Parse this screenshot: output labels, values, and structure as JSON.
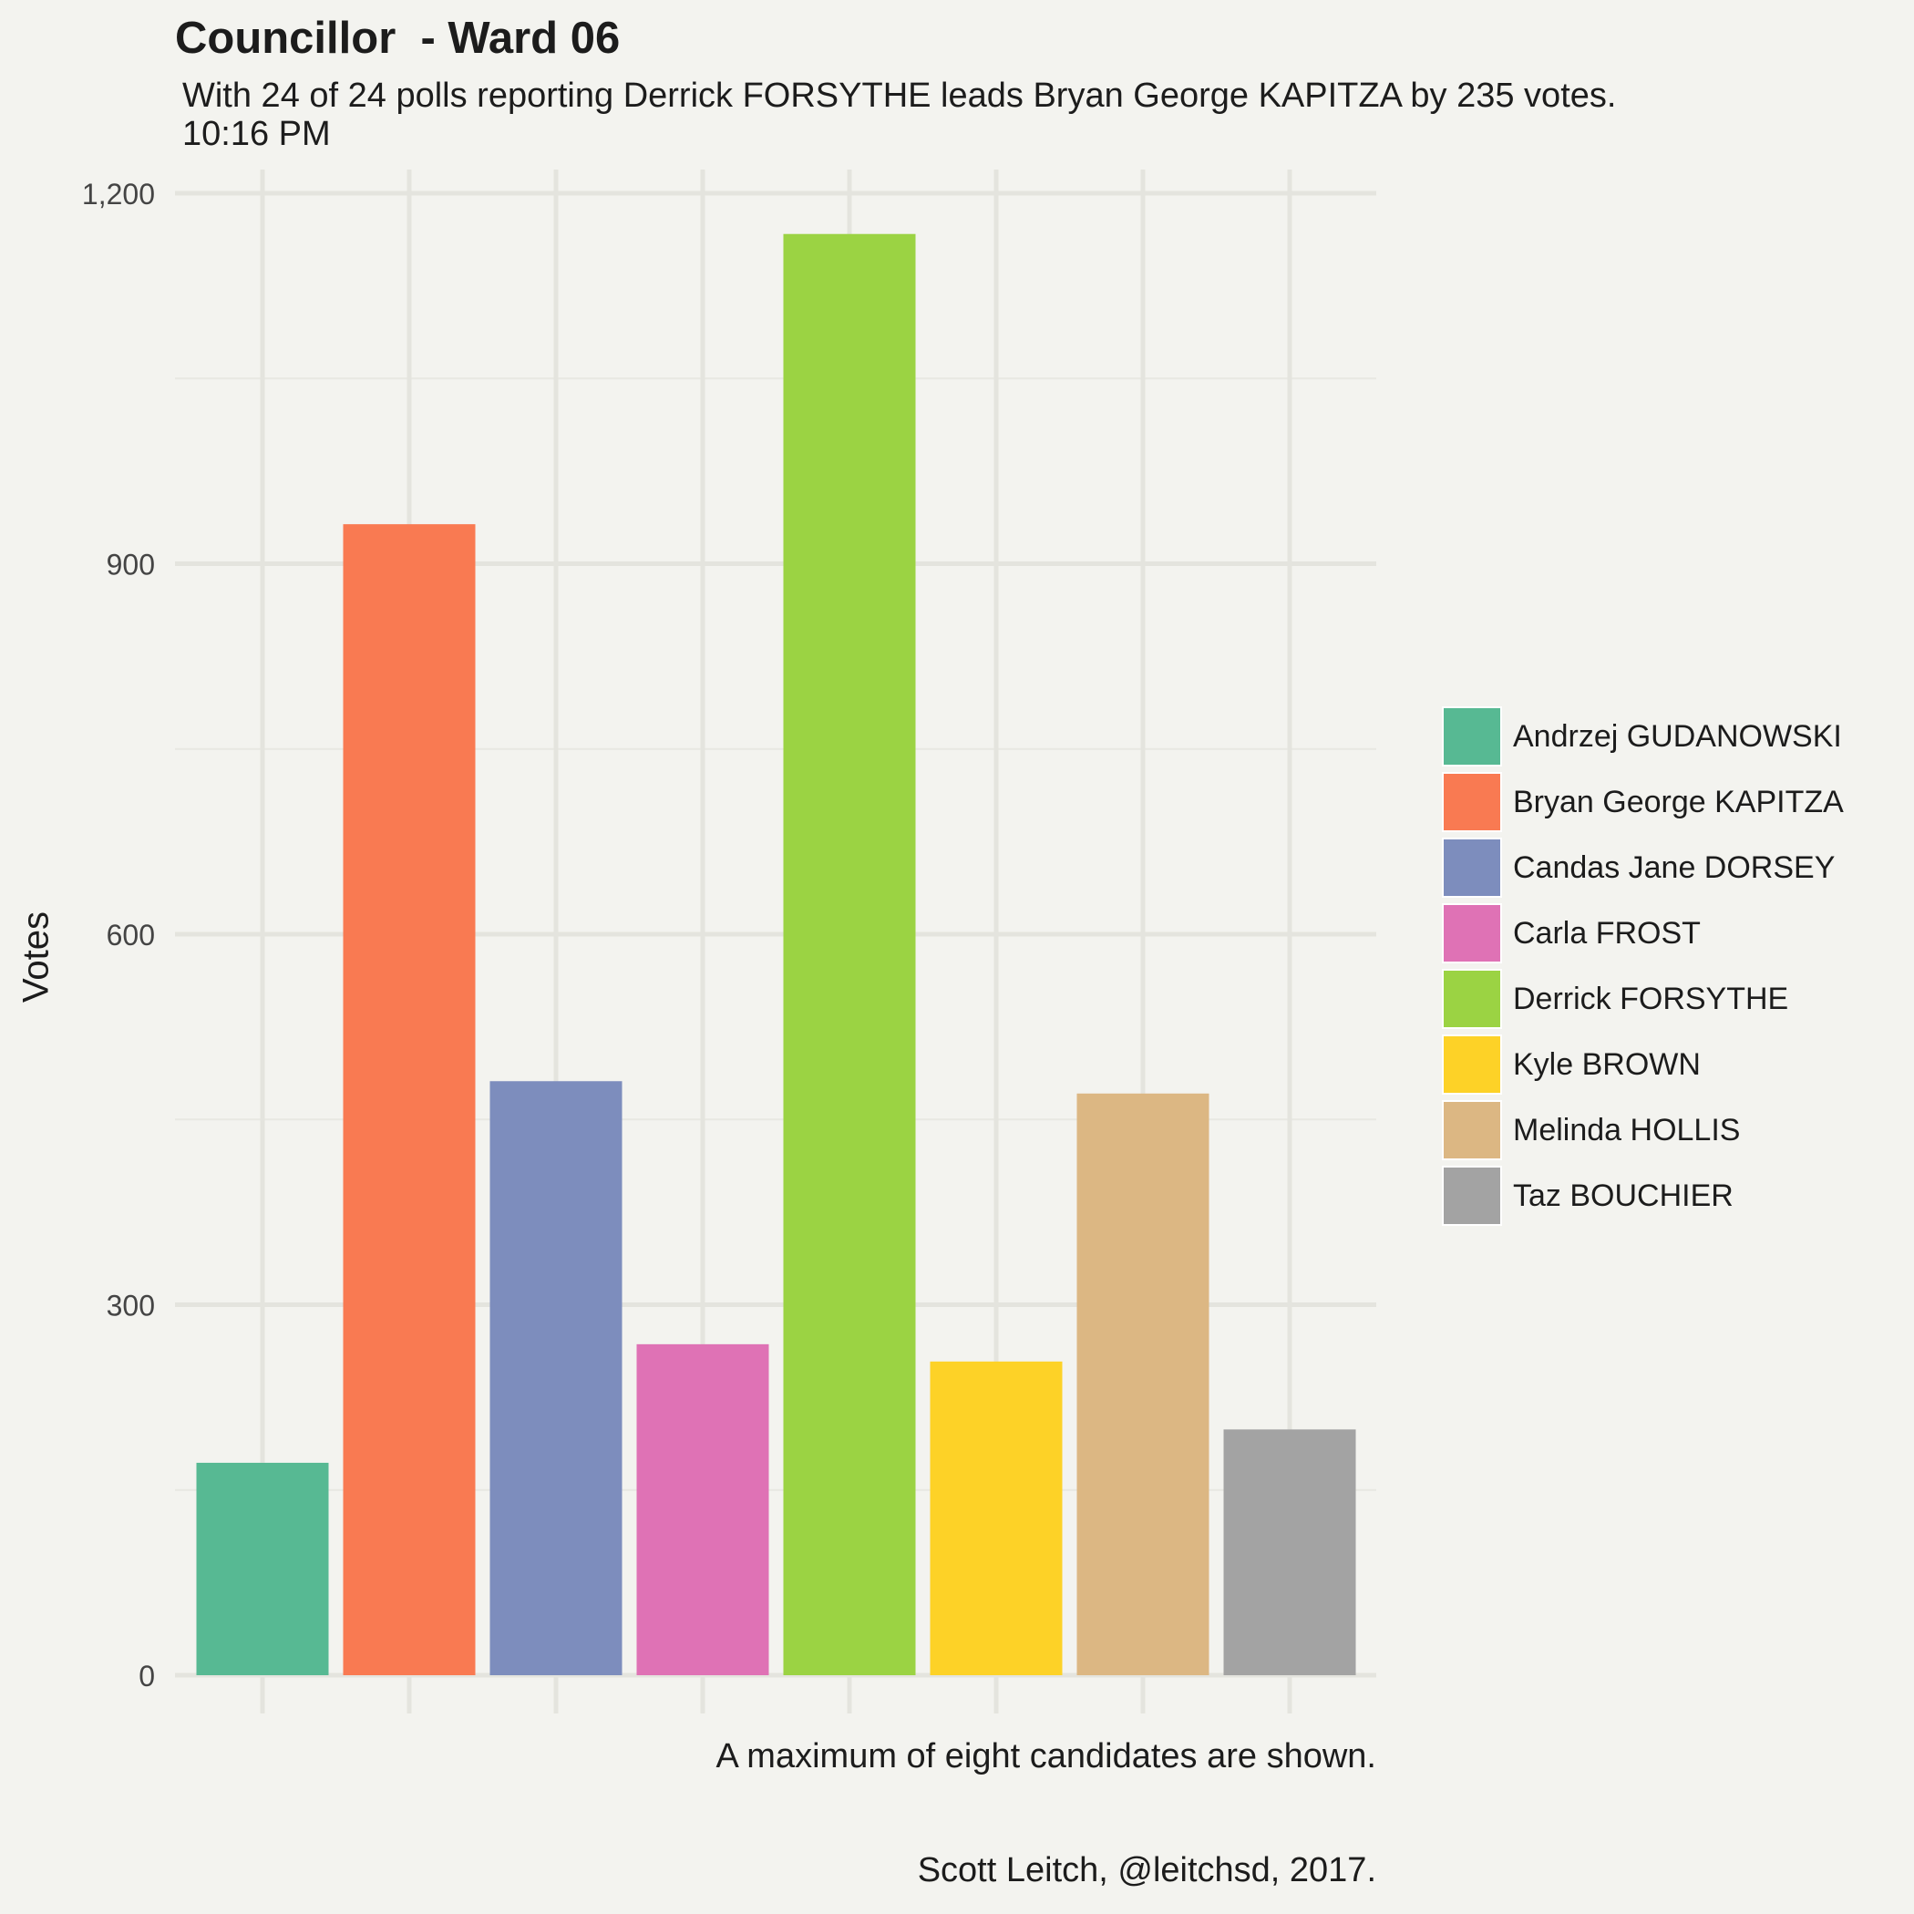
{
  "chart_data": {
    "type": "bar",
    "title": "Councillor  - Ward 06",
    "subtitle_line1": "With 24 of 24 polls reporting Derrick FORSYTHE leads Bryan George KAPITZA by 235 votes.",
    "subtitle_line2": "10:16 PM",
    "xlabel": "",
    "ylabel": "Votes",
    "ylim": [
      0,
      1200
    ],
    "yticks": [
      0,
      300,
      600,
      900,
      1200
    ],
    "ytick_labels": [
      "0",
      "300",
      "600",
      "900",
      "1,200"
    ],
    "grid": true,
    "legend_position": "right",
    "categories": [
      "Andrzej GUDANOWSKI",
      "Bryan George KAPITZA",
      "Candas Jane DORSEY",
      "Carla FROST",
      "Derrick FORSYTHE",
      "Kyle BROWN",
      "Melinda HOLLIS",
      "Taz BOUCHIER"
    ],
    "values": [
      172,
      932,
      481,
      268,
      1167,
      254,
      471,
      199
    ],
    "colors": [
      "#57b993",
      "#f97a52",
      "#7d8dbd",
      "#df72b5",
      "#9bd343",
      "#fdd227",
      "#dcb783",
      "#a3a3a3"
    ],
    "caption_line1": "A maximum of eight candidates are shown.",
    "caption_line2": "Scott Leitch, @leitchsd, 2017."
  }
}
